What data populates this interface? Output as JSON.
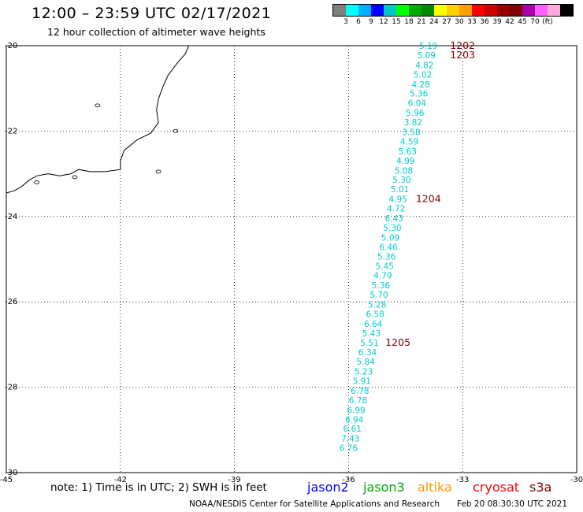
{
  "header": {
    "title": "12:00 – 23:59 UTC 02/17/2021",
    "subtitle": "12 hour collection of altimeter wave heights"
  },
  "legend": {
    "colors": [
      "#7f7f7f",
      "#00ffff",
      "#00b0ff",
      "#0000ff",
      "#00c8c8",
      "#00ff00",
      "#00aa00",
      "#008800",
      "#ffff00",
      "#ffd000",
      "#ffa000",
      "#ff0000",
      "#cc0000",
      "#990000",
      "#7f0000",
      "#aa00aa",
      "#ff60ff",
      "#ffaadd",
      "#000000"
    ],
    "labels": [
      "3",
      "6",
      "9",
      "12",
      "15",
      "18",
      "21",
      "24",
      "27",
      "30",
      "33",
      "36",
      "39",
      "42",
      "45",
      "70",
      "(ft)"
    ]
  },
  "map": {
    "lon_range": [
      -45,
      -30
    ],
    "lat_range": [
      -30,
      -20
    ],
    "lon_ticks": [
      "-45",
      "-42",
      "-39",
      "-36",
      "-33",
      "-30"
    ],
    "lat_ticks": [
      "-20",
      "-22",
      "-24",
      "-26",
      "-28",
      "-30"
    ],
    "grid": "dotted",
    "track_color": "#00cccc",
    "label_color": "#800000"
  },
  "chart_data": {
    "type": "scatter",
    "xlabel": "",
    "ylabel": "",
    "x": "longitude",
    "y": "latitude",
    "xlim": [
      -45,
      -30
    ],
    "ylim": [
      -30,
      -20
    ],
    "swh_points": [
      {
        "lat": -20.0,
        "lon": -33.9,
        "text": "5.19"
      },
      {
        "lat": -20.22,
        "lon": -33.95,
        "text": "5.09"
      },
      {
        "lat": -20.45,
        "lon": -34.0,
        "text": "4.82"
      },
      {
        "lat": -20.67,
        "lon": -34.05,
        "text": "5.02"
      },
      {
        "lat": -20.9,
        "lon": -34.1,
        "text": "4.28"
      },
      {
        "lat": -21.12,
        "lon": -34.15,
        "text": "5.36"
      },
      {
        "lat": -21.34,
        "lon": -34.2,
        "text": "6.04"
      },
      {
        "lat": -21.57,
        "lon": -34.25,
        "text": "5.96"
      },
      {
        "lat": -21.79,
        "lon": -34.3,
        "text": "3.82"
      },
      {
        "lat": -22.02,
        "lon": -34.35,
        "text": "3.58"
      },
      {
        "lat": -22.24,
        "lon": -34.4,
        "text": "4.59"
      },
      {
        "lat": -22.47,
        "lon": -34.45,
        "text": "5.63"
      },
      {
        "lat": -22.69,
        "lon": -34.5,
        "text": "4.99"
      },
      {
        "lat": -22.92,
        "lon": -34.55,
        "text": "5.08"
      },
      {
        "lat": -23.14,
        "lon": -34.6,
        "text": "5.30"
      },
      {
        "lat": -23.36,
        "lon": -34.65,
        "text": "5.01"
      },
      {
        "lat": -23.59,
        "lon": -34.7,
        "text": "4.95"
      },
      {
        "lat": -23.81,
        "lon": -34.75,
        "text": "4.72"
      },
      {
        "lat": -24.04,
        "lon": -34.8,
        "text": "6.43"
      },
      {
        "lat": -24.26,
        "lon": -34.85,
        "text": "5.30"
      },
      {
        "lat": -24.49,
        "lon": -34.9,
        "text": "5.09"
      },
      {
        "lat": -24.71,
        "lon": -34.95,
        "text": "6.46"
      },
      {
        "lat": -24.94,
        "lon": -35.0,
        "text": "5.36"
      },
      {
        "lat": -25.16,
        "lon": -35.05,
        "text": "5.45"
      },
      {
        "lat": -25.38,
        "lon": -35.1,
        "text": "4.79"
      },
      {
        "lat": -25.61,
        "lon": -35.15,
        "text": "5.36"
      },
      {
        "lat": -25.83,
        "lon": -35.2,
        "text": "5.70"
      },
      {
        "lat": -26.06,
        "lon": -35.25,
        "text": "5.28"
      },
      {
        "lat": -26.28,
        "lon": -35.3,
        "text": "6.58"
      },
      {
        "lat": -26.51,
        "lon": -35.35,
        "text": "6.64"
      },
      {
        "lat": -26.73,
        "lon": -35.4,
        "text": "5.43"
      },
      {
        "lat": -26.96,
        "lon": -35.45,
        "text": "5.51"
      },
      {
        "lat": -27.18,
        "lon": -35.5,
        "text": "6.34"
      },
      {
        "lat": -27.4,
        "lon": -35.55,
        "text": "5.84"
      },
      {
        "lat": -27.63,
        "lon": -35.6,
        "text": "5.23"
      },
      {
        "lat": -27.85,
        "lon": -35.65,
        "text": "5.91"
      },
      {
        "lat": -28.08,
        "lon": -35.7,
        "text": "6.78"
      },
      {
        "lat": -28.3,
        "lon": -35.75,
        "text": "6.78"
      },
      {
        "lat": -28.53,
        "lon": -35.8,
        "text": "6.99"
      },
      {
        "lat": -28.75,
        "lon": -35.85,
        "text": "6.94"
      },
      {
        "lat": -28.97,
        "lon": -35.9,
        "text": "6.61"
      },
      {
        "lat": -29.2,
        "lon": -35.95,
        "text": "7.43"
      },
      {
        "lat": -29.42,
        "lon": -36.0,
        "text": "6.76"
      }
    ],
    "pass_labels": [
      {
        "lat": -20.0,
        "lon": -33.0,
        "text": "1202"
      },
      {
        "lat": -20.22,
        "lon": -33.0,
        "text": "1203"
      },
      {
        "lat": -23.59,
        "lon": -33.9,
        "text": "1204"
      },
      {
        "lat": -26.96,
        "lon": -34.7,
        "text": "1205"
      }
    ]
  },
  "coastline": [
    [
      -40.2,
      -20.0
    ],
    [
      -40.3,
      -20.2
    ],
    [
      -40.5,
      -20.4
    ],
    [
      -40.75,
      -20.7
    ],
    [
      -40.9,
      -21.0
    ],
    [
      -41.0,
      -21.25
    ],
    [
      -41.05,
      -21.5
    ],
    [
      -41.0,
      -21.8
    ],
    [
      -41.2,
      -22.05
    ],
    [
      -41.55,
      -22.2
    ],
    [
      -41.9,
      -22.45
    ],
    [
      -42.0,
      -22.7
    ],
    [
      -42.0,
      -22.9
    ],
    [
      -42.4,
      -22.95
    ],
    [
      -42.8,
      -22.95
    ],
    [
      -43.1,
      -22.9
    ],
    [
      -43.3,
      -23.0
    ],
    [
      -43.6,
      -23.05
    ],
    [
      -43.9,
      -23.0
    ],
    [
      -44.2,
      -23.05
    ],
    [
      -44.4,
      -23.15
    ],
    [
      -44.6,
      -23.3
    ],
    [
      -44.8,
      -23.4
    ],
    [
      -45.0,
      -23.45
    ]
  ],
  "island_marker": {
    "lat": -20.5,
    "lon": -29.35
  },
  "footer": {
    "note": "note:  1) Time is in UTC;  2) SWH is in feet",
    "satellites": [
      {
        "name": "jason2",
        "color": "#0000ff"
      },
      {
        "name": "jason3",
        "color": "#00aa00"
      },
      {
        "name": "altika",
        "color": "#ff9900"
      },
      {
        "name": "cryosat",
        "color": "#ff0000"
      },
      {
        "name": "s3a",
        "color": "#800000"
      }
    ],
    "credit": "NOAA/NESDIS Center for Satellite Applications and Research",
    "timestamp": "Feb 20 08:30:30 UTC 2021"
  }
}
